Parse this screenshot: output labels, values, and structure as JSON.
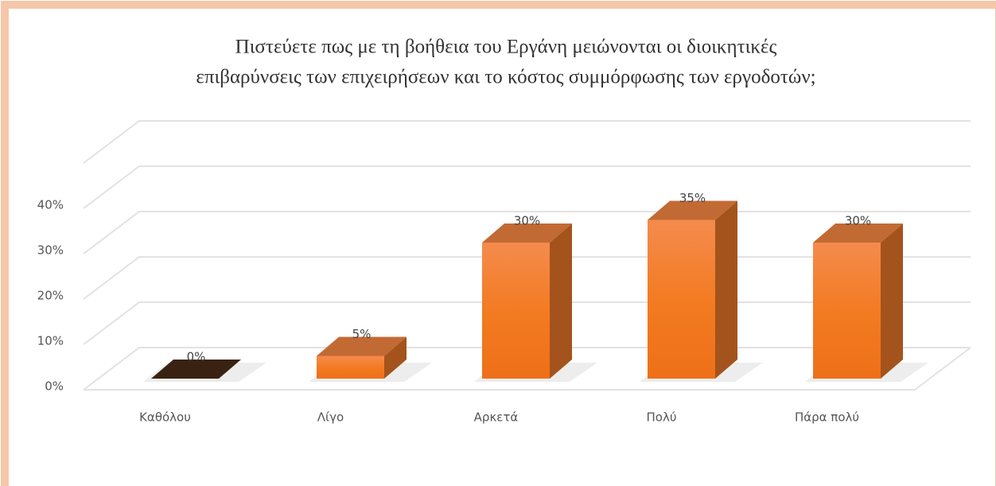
{
  "chart_data": {
    "type": "bar3d",
    "title": [
      "Πιστεύετε πως με τη βοήθεια του Εργάνη μειώνονται οι διοικητικές",
      "επιβαρύνσεις των επιχειρήσεων και το κόστος συμμόρφωσης των εργοδοτών;"
    ],
    "categories": [
      "Καθόλου",
      "Λίγο",
      "Αρκετά",
      "Πολύ",
      "Πάρα πολύ"
    ],
    "values": [
      0,
      5,
      30,
      35,
      30
    ],
    "value_labels": [
      "0%",
      "5%",
      "30%",
      "35%",
      "30%"
    ],
    "color": "#f27a26",
    "ylim": [
      0,
      50
    ],
    "yticks": [
      {
        "value": 0,
        "label": "0%"
      },
      {
        "value": 10,
        "label": "10%"
      },
      {
        "value": 20,
        "label": "20%"
      },
      {
        "value": 30,
        "label": "30%"
      },
      {
        "value": 40,
        "label": "40%"
      }
    ],
    "grid": true
  }
}
